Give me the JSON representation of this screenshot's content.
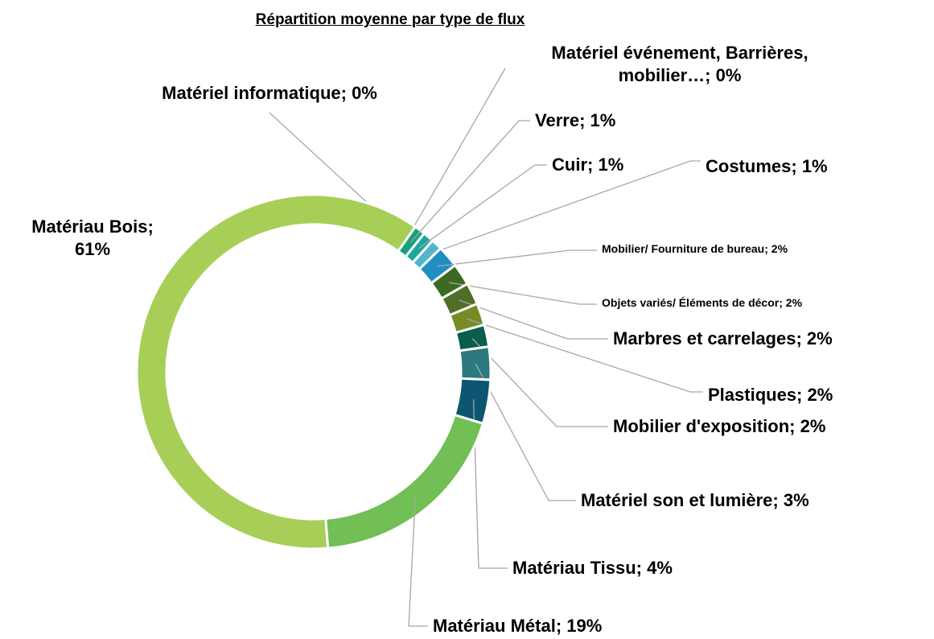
{
  "chart_data": {
    "type": "donut",
    "title": "Répartition moyenne par type de flux",
    "separator": "; ",
    "categories": [
      "Matériel informatique",
      "Matériel événement, Barrières, mobilier…",
      "Verre",
      "Cuir",
      "Costumes",
      "Mobilier/ Fourniture de bureau",
      "Objets variés/ Éléments de décor",
      "Marbres et carrelages",
      "Plastiques",
      "Mobilier d'exposition",
      "Matériel son et lumière",
      "Matériau Tissu",
      "Matériau Métal",
      "Matériau Bois"
    ],
    "values": [
      0,
      0,
      1,
      1,
      1,
      2,
      2,
      2,
      2,
      2,
      3,
      4,
      19,
      61
    ],
    "value_labels": [
      "0%",
      "0%",
      "1%",
      "1%",
      "1%",
      "2%",
      "2%",
      "2%",
      "2%",
      "2%",
      "3%",
      "4%",
      "19%",
      "61%"
    ],
    "colors": [
      "#d9e36c",
      "#c7d94e",
      "#17a07a",
      "#1aa89c",
      "#4db6c9",
      "#1f8fc2",
      "#3b6a22",
      "#4f6e27",
      "#778b24",
      "#0a5e4b",
      "#2a7a7f",
      "#0c5672",
      "#71bf55",
      "#a7cf58"
    ]
  }
}
